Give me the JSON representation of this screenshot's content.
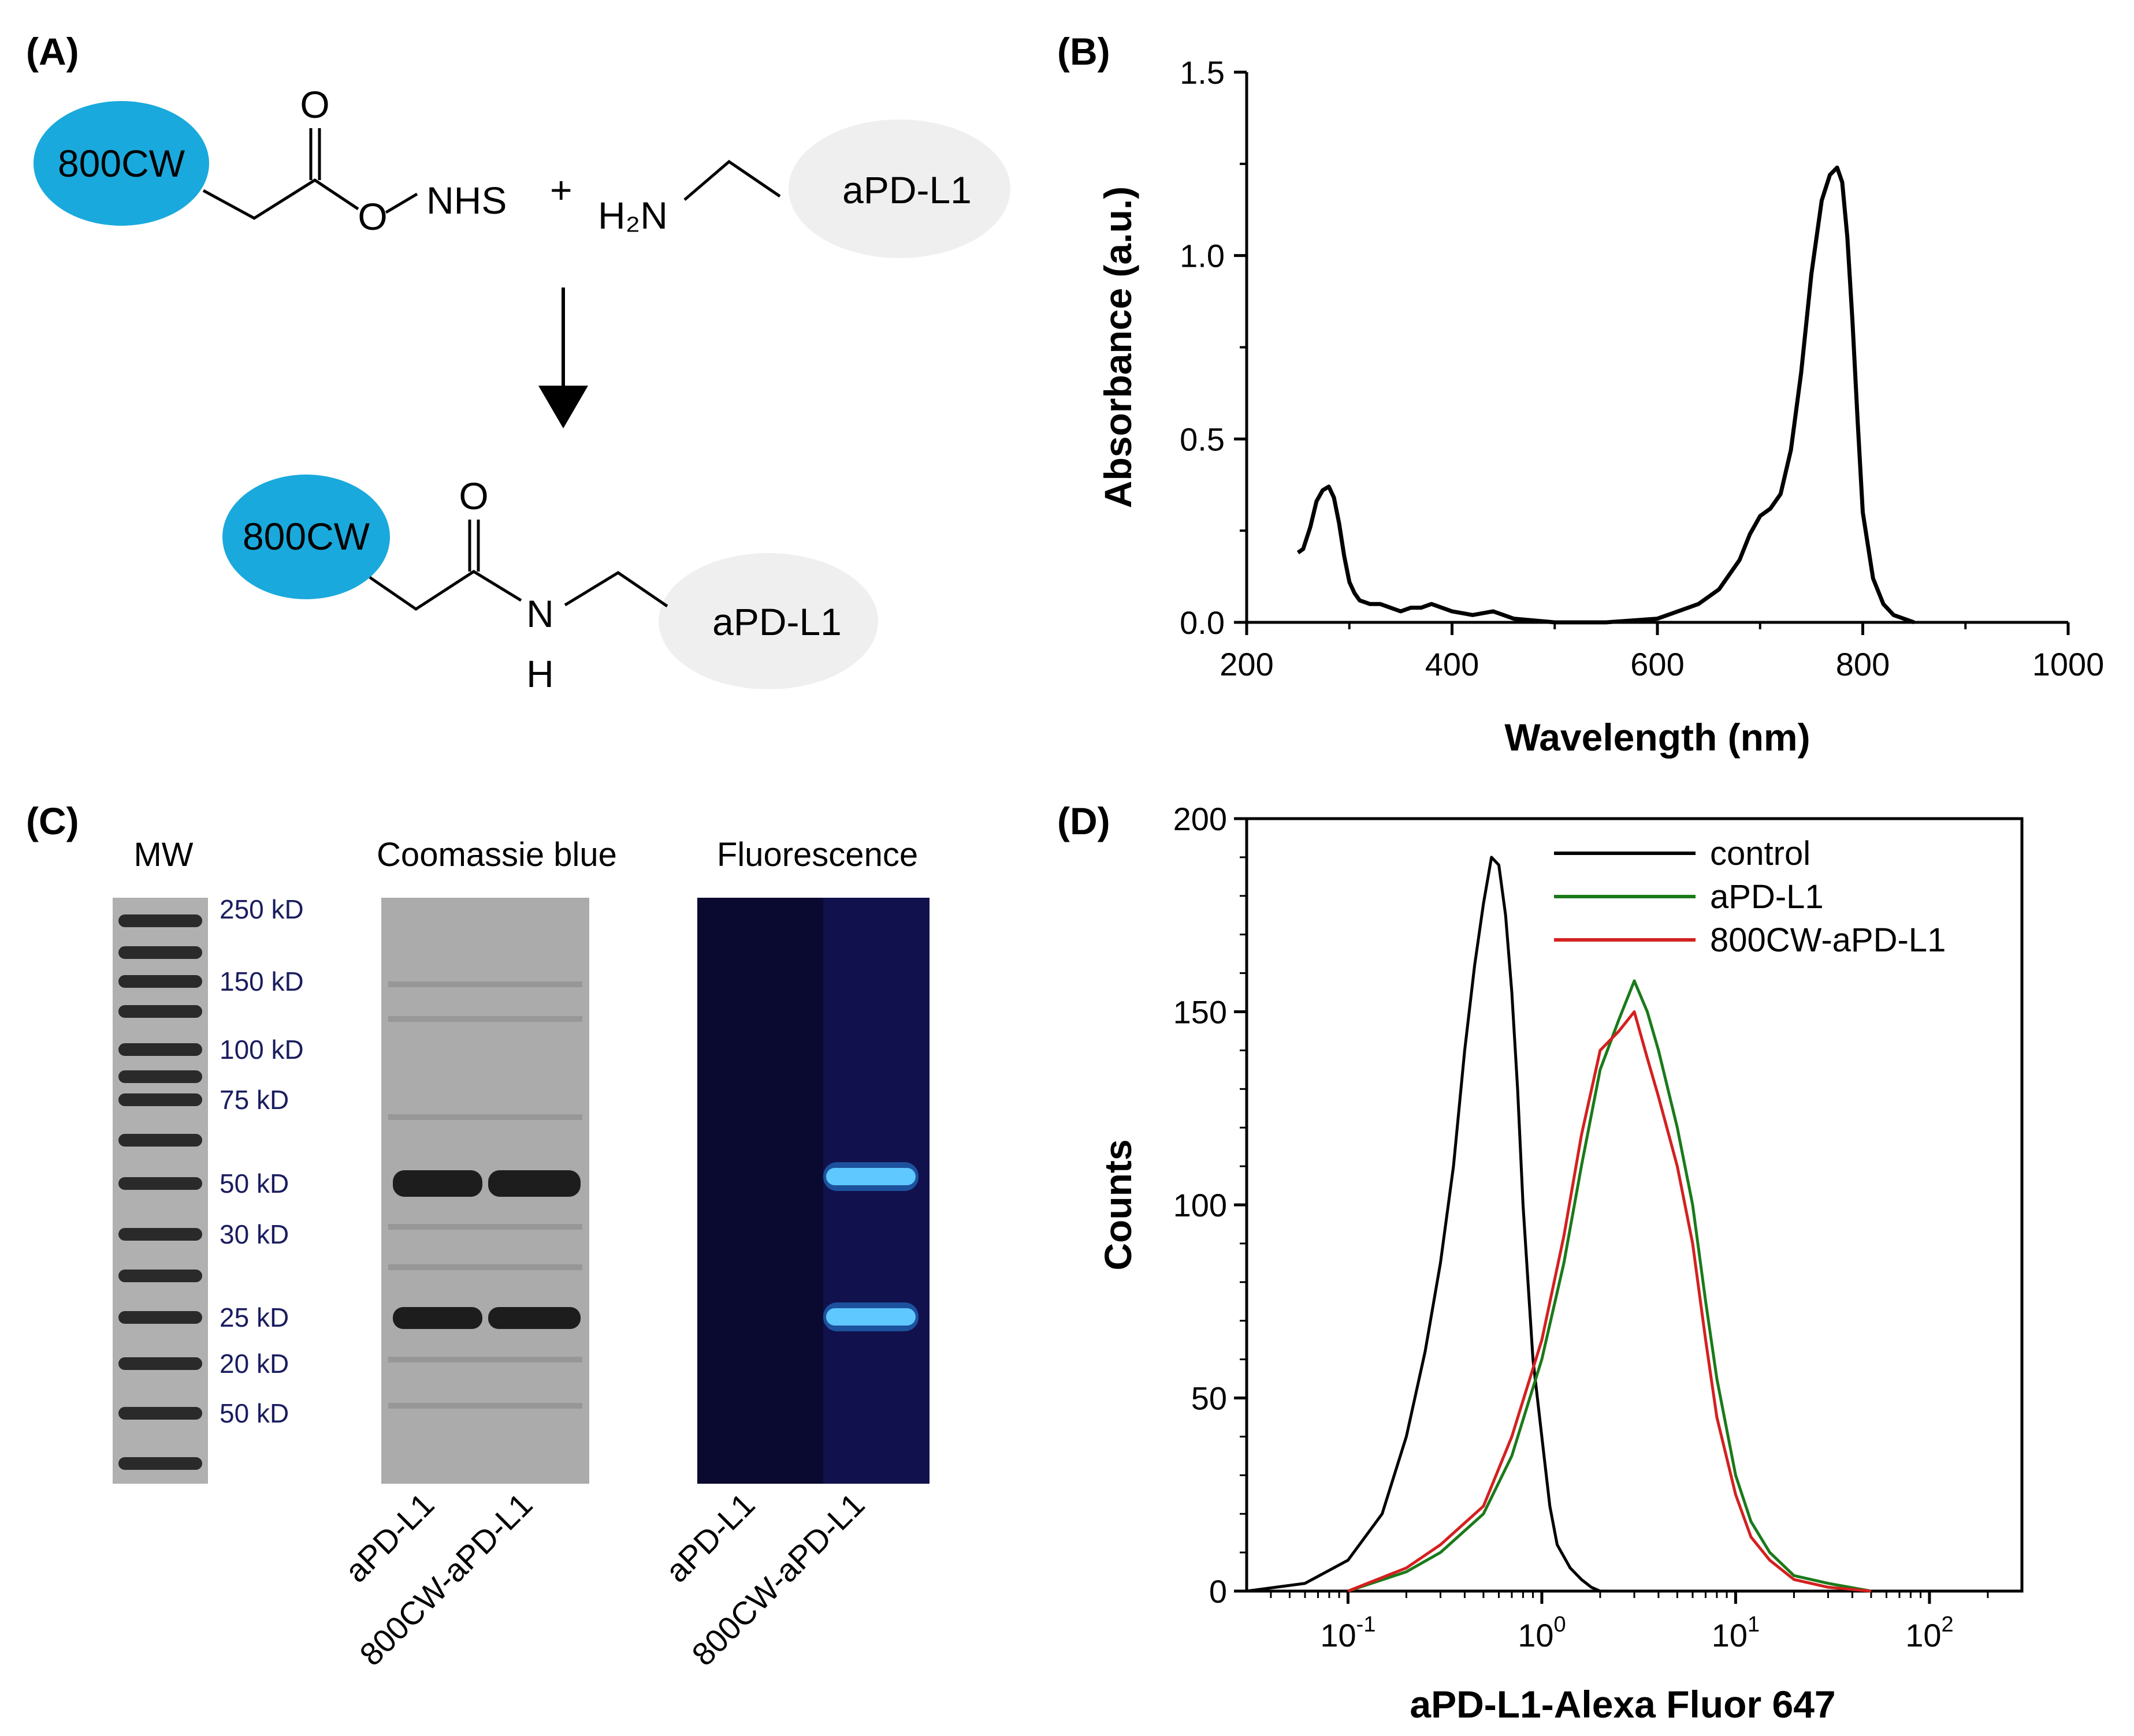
{
  "panel_a": {
    "label": "(A)",
    "reactant_dye": "800CW",
    "carbonyl_o": "O",
    "ester_o": "O",
    "nhs": "NHS",
    "plus": "+",
    "amine": "H₂N",
    "antibody": "aPD-L1",
    "product_dye": "800CW",
    "product_o": "O",
    "product_n": "N",
    "product_h": "H",
    "product_antibody": "aPD-L1",
    "colors": {
      "dye": "#1aa9dc",
      "antibody": "#efefef"
    }
  },
  "panel_b": {
    "label": "(B)",
    "chart_data": {
      "type": "line",
      "xlabel": "Wavelength (nm)",
      "ylabel": "Absorbance (a.u.)",
      "xlim": [
        200,
        1000
      ],
      "ylim": [
        0,
        1.5
      ],
      "xticks": [
        "200",
        "400",
        "600",
        "800",
        "1000"
      ],
      "yticks": [
        "0.0",
        "0.5",
        "1.0",
        "1.5"
      ],
      "series": [
        {
          "x": [
            250,
            255,
            262,
            268,
            274,
            280,
            285,
            290,
            295,
            300,
            305,
            310,
            320,
            330,
            340,
            350,
            360,
            370,
            380,
            390,
            400,
            420,
            440,
            460,
            500,
            550,
            600,
            620,
            640,
            660,
            680,
            690,
            700,
            710,
            720,
            730,
            740,
            750,
            760,
            768,
            775,
            780,
            785,
            790,
            795,
            800,
            810,
            820,
            830,
            850
          ],
          "y": [
            0.19,
            0.2,
            0.26,
            0.33,
            0.36,
            0.37,
            0.34,
            0.27,
            0.18,
            0.11,
            0.08,
            0.06,
            0.05,
            0.05,
            0.04,
            0.03,
            0.04,
            0.04,
            0.05,
            0.04,
            0.03,
            0.02,
            0.03,
            0.01,
            0.0,
            0.0,
            0.01,
            0.03,
            0.05,
            0.09,
            0.17,
            0.24,
            0.29,
            0.31,
            0.35,
            0.47,
            0.68,
            0.95,
            1.15,
            1.22,
            1.24,
            1.2,
            1.05,
            0.82,
            0.55,
            0.3,
            0.12,
            0.05,
            0.02,
            0.0
          ]
        }
      ]
    }
  },
  "panel_c": {
    "label": "(C)",
    "mw_title": "MW",
    "coomassie_title": "Coomassie blue",
    "fluorescence_title": "Fluorescence",
    "markers": [
      "250 kD",
      "150 kD",
      "100 kD",
      "75 kD",
      "50 kD",
      "30 kD",
      "25 kD",
      "20 kD",
      "50 kD"
    ],
    "lanes": [
      "aPD-L1",
      "800CW-aPD-L1"
    ],
    "colors": {
      "gel": "#a9a9a9",
      "fluor_bg": "#0c0c3a",
      "fluor_band": "#2aa0ff"
    }
  },
  "panel_d": {
    "label": "(D)",
    "chart_data": {
      "type": "line",
      "xlabel": "aPD-L1-Alexa Fluor 647",
      "ylabel": "Counts",
      "xscale": "log",
      "xlim": [
        0.03,
        300
      ],
      "ylim": [
        0,
        200
      ],
      "xticks": [
        {
          "base": "10",
          "exp": "-1",
          "value": 0.1
        },
        {
          "base": "10",
          "exp": "0",
          "value": 1
        },
        {
          "base": "10",
          "exp": "1",
          "value": 10
        },
        {
          "base": "10",
          "exp": "2",
          "value": 100
        }
      ],
      "yticks": [
        "0",
        "50",
        "100",
        "150",
        "200"
      ],
      "legend_position": "top-right",
      "series": [
        {
          "name": "control",
          "color": "#000000",
          "x": [
            0.03,
            0.06,
            0.1,
            0.15,
            0.2,
            0.25,
            0.3,
            0.35,
            0.4,
            0.45,
            0.5,
            0.55,
            0.6,
            0.65,
            0.7,
            0.75,
            0.8,
            0.9,
            1.0,
            1.1,
            1.2,
            1.4,
            1.6,
            1.8,
            2.0
          ],
          "y": [
            0,
            2,
            8,
            20,
            40,
            62,
            85,
            110,
            140,
            162,
            178,
            190,
            188,
            175,
            155,
            130,
            100,
            60,
            40,
            22,
            12,
            6,
            3,
            1,
            0
          ]
        },
        {
          "name": "aPD-L1",
          "color": "#1a7a1a",
          "x": [
            0.1,
            0.2,
            0.3,
            0.5,
            0.7,
            1.0,
            1.3,
            1.6,
            2.0,
            2.5,
            3.0,
            3.5,
            4.0,
            5.0,
            6.0,
            7.0,
            8.0,
            10.0,
            12.0,
            15.0,
            20.0,
            30.0,
            50.0
          ],
          "y": [
            0,
            5,
            10,
            20,
            35,
            60,
            85,
            110,
            135,
            148,
            158,
            150,
            140,
            120,
            100,
            75,
            55,
            30,
            18,
            10,
            4,
            2,
            0
          ]
        },
        {
          "name": "800CW-aPD-L1",
          "color": "#d42020",
          "x": [
            0.1,
            0.2,
            0.3,
            0.5,
            0.7,
            1.0,
            1.3,
            1.6,
            2.0,
            2.5,
            3.0,
            3.5,
            4.0,
            5.0,
            6.0,
            7.0,
            8.0,
            10.0,
            12.0,
            15.0,
            20.0,
            30.0,
            50.0
          ],
          "y": [
            0,
            6,
            12,
            22,
            40,
            65,
            92,
            118,
            140,
            145,
            150,
            138,
            128,
            110,
            90,
            65,
            45,
            25,
            14,
            8,
            3,
            1,
            0
          ]
        }
      ]
    }
  }
}
